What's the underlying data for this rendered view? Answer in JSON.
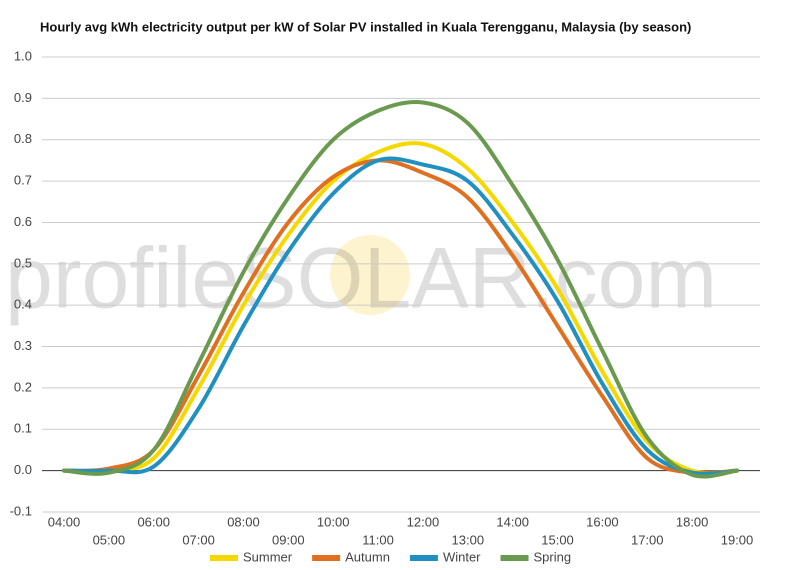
{
  "chart_data": {
    "type": "line",
    "title": "Hourly avg kWh electricity output per kW of Solar PV installed in Kuala Terengganu, Malaysia (by season)",
    "watermark": "profileSOLAR.com",
    "categories": [
      "04:00",
      "05:00",
      "06:00",
      "07:00",
      "08:00",
      "09:00",
      "10:00",
      "11:00",
      "12:00",
      "13:00",
      "14:00",
      "15:00",
      "16:00",
      "17:00",
      "18:00",
      "19:00"
    ],
    "series": [
      {
        "name": "Summer",
        "color": "#f5d800",
        "values": [
          0,
          0,
          0.03,
          0.2,
          0.4,
          0.57,
          0.7,
          0.77,
          0.79,
          0.73,
          0.6,
          0.44,
          0.24,
          0.07,
          0.0,
          0.0
        ]
      },
      {
        "name": "Autumn",
        "color": "#e07020",
        "values": [
          0,
          0.005,
          0.05,
          0.23,
          0.43,
          0.6,
          0.71,
          0.75,
          0.72,
          0.66,
          0.52,
          0.35,
          0.18,
          0.03,
          -0.005,
          0
        ]
      },
      {
        "name": "Winter",
        "color": "#2090c0",
        "values": [
          0,
          0,
          0.01,
          0.15,
          0.35,
          0.53,
          0.67,
          0.75,
          0.74,
          0.7,
          0.57,
          0.41,
          0.21,
          0.05,
          -0.005,
          0
        ]
      },
      {
        "name": "Spring",
        "color": "#6a9a50",
        "values": [
          0,
          -0.005,
          0.05,
          0.26,
          0.48,
          0.66,
          0.8,
          0.87,
          0.89,
          0.84,
          0.69,
          0.51,
          0.29,
          0.08,
          -0.01,
          0
        ]
      }
    ],
    "ylim": [
      -0.1,
      1.0
    ],
    "yticks": [
      -0.1,
      {
        "value": 0,
        "label": "0.0"
      },
      0.1,
      0.2,
      0.3,
      0.4,
      0.5,
      0.6,
      0.7,
      0.8,
      0.9,
      {
        "value": 1,
        "label": "1.0"
      }
    ],
    "grid": true,
    "legend": "bottom"
  }
}
